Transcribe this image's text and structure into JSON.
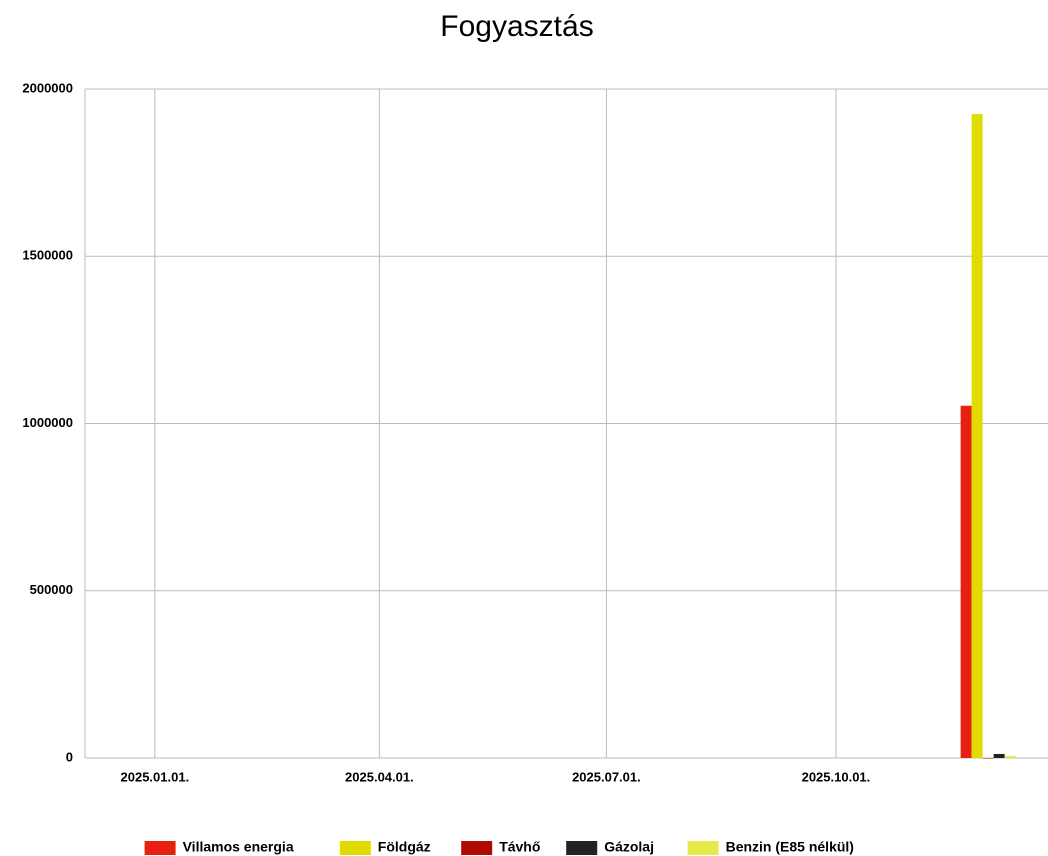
{
  "chart_data": {
    "type": "bar",
    "title": "Fogyasztás",
    "x": [
      "2025.12.01."
    ],
    "series": [
      {
        "name": "Villamos energia",
        "color": "#e8200f",
        "values": [
          1053000
        ]
      },
      {
        "name": "Földgáz",
        "color": "#e0dc00",
        "values": [
          1925000
        ]
      },
      {
        "name": "Távhő",
        "color": "#b00a00",
        "values": [
          0
        ]
      },
      {
        "name": "Gázolaj",
        "color": "#222222",
        "values": [
          12000
        ]
      },
      {
        "name": "Benzin (E85 nélkül)",
        "color": "#e8e84a",
        "values": [
          6000
        ]
      }
    ],
    "xlim": [
      "2024.12.04.",
      "2025.12.25."
    ],
    "xticks": [
      "2025.01.01.",
      "2025.04.01.",
      "2025.07.01.",
      "2025.10.01."
    ],
    "ylim": [
      0,
      2000000
    ],
    "yticks": [
      0,
      500000,
      1000000,
      1500000,
      2000000
    ],
    "grid": true,
    "legend": "bottom"
  }
}
